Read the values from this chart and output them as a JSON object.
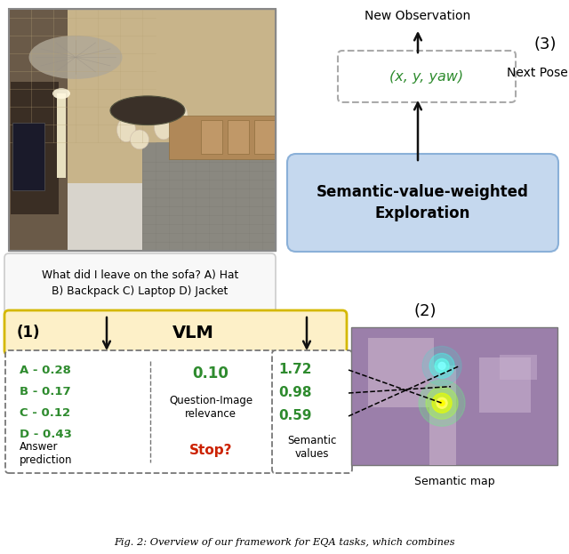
{
  "fig_width": 6.4,
  "fig_height": 6.23,
  "bg_color": "#ffffff",
  "title_text": "Fig. 2: Overview of our framework for EQA tasks, which combines",
  "question_text": "What did I leave on the sofa? A) Hat\nB) Backpack C) Laptop D) Jacket",
  "new_obs_label": "New Observation",
  "next_pose_label": "Next Pose",
  "pose_label": "(x, y, yaw)",
  "swe_label": "Semantic-value-weighted\nExploration",
  "label_2": "(2)",
  "label_3": "(3)",
  "answer_preds": [
    "A - 0.28",
    "B - 0.17",
    "C - 0.12",
    "D - 0.43"
  ],
  "answer_label": "Answer\nprediction",
  "qi_value": "0.10",
  "qi_label": "Question-Image\nrelevance",
  "stop_label": "Stop?",
  "sem_values": [
    "1.72",
    "0.98",
    "0.59"
  ],
  "sem_label": "Semantic\nvalues",
  "sem_map_label": "Semantic map",
  "green_color": "#2e8b2e",
  "red_color": "#cc2200",
  "blue_box_color": "#c5d8ee",
  "blue_box_edge": "#8ab0d8",
  "yellow_box_color": "#fdf0c8",
  "yellow_box_edge": "#d4b800",
  "pose_box_edge": "#aaaaaa",
  "dashed_box_edge": "#777777",
  "question_box_color": "#f8f8f8",
  "question_box_edge": "#cccccc",
  "arrow_color": "#111111",
  "sem_map_purple": "#9b7faa",
  "sem_map_light": "#b89fbe",
  "sem_map_lighter": "#c8b0ce"
}
